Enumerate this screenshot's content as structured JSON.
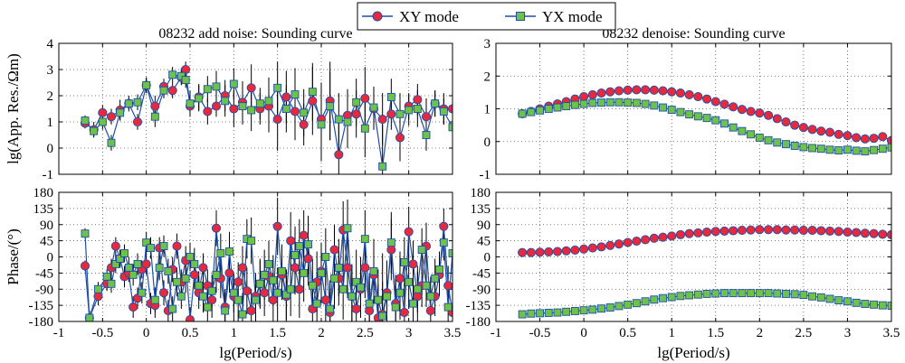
{
  "legend": {
    "items": [
      {
        "label": "XY mode"
      },
      {
        "label": "YX mode"
      }
    ]
  },
  "colors": {
    "xy_marker": "#e8283c",
    "yx_marker": "#6cc24a",
    "line": "#1f4fa8",
    "error_bar": "#000000"
  },
  "chart_data": [
    {
      "type": "line",
      "title": "08232 add noise: Sounding curve",
      "xlabel": "",
      "ylabel": "lg(App. Res./Ωm)",
      "xlim": [
        -1,
        3.5
      ],
      "ylim": [
        -1,
        4
      ],
      "xticks": [
        "-1",
        "-0.5",
        "0",
        "0.5",
        "1",
        "1.5",
        "2",
        "2.5",
        "3",
        "3.5"
      ],
      "yticks": [
        "-1",
        "0",
        "1",
        "2",
        "3",
        "4"
      ],
      "grid": true,
      "error_bars": true,
      "x": [
        -0.7,
        -0.6,
        -0.5,
        -0.4,
        -0.3,
        -0.2,
        -0.1,
        0.0,
        0.1,
        0.2,
        0.3,
        0.4,
        0.45,
        0.5,
        0.6,
        0.7,
        0.8,
        0.9,
        1.0,
        1.1,
        1.2,
        1.3,
        1.4,
        1.5,
        1.6,
        1.7,
        1.8,
        1.9,
        2.0,
        2.1,
        2.2,
        2.3,
        2.4,
        2.5,
        2.6,
        2.7,
        2.8,
        2.9,
        3.0,
        3.1,
        3.2,
        3.3,
        3.4,
        3.5
      ],
      "series": [
        {
          "name": "XY mode",
          "values": [
            0.95,
            0.7,
            1.35,
            1.2,
            1.45,
            1.7,
            1.0,
            2.4,
            1.6,
            2.35,
            2.2,
            2.7,
            3.0,
            1.6,
            1.95,
            1.4,
            1.6,
            2.0,
            1.5,
            1.75,
            2.3,
            1.5,
            1.6,
            1.1,
            1.95,
            1.4,
            0.9,
            1.8,
            1.1,
            1.8,
            -0.25,
            1.25,
            1.3,
            1.9,
            1.5,
            1.1,
            1.3,
            0.4,
            1.6,
            1.85,
            1.2,
            1.7,
            1.5,
            1.5
          ]
        },
        {
          "name": "YX mode",
          "values": [
            1.05,
            0.65,
            1.0,
            0.2,
            1.35,
            1.7,
            1.75,
            2.4,
            1.2,
            2.2,
            2.8,
            2.75,
            2.6,
            1.7,
            1.9,
            2.25,
            2.35,
            1.8,
            2.45,
            1.6,
            1.45,
            1.7,
            1.8,
            2.3,
            1.5,
            2.05,
            1.35,
            2.15,
            0.9,
            1.6,
            1.1,
            1.0,
            1.75,
            0.75,
            1.55,
            -0.7,
            1.95,
            1.3,
            1.45,
            1.5,
            0.5,
            1.7,
            1.4,
            0.8
          ]
        }
      ],
      "xy_error": [
        0.2,
        0.3,
        0.3,
        0.3,
        0.4,
        0.2,
        0.3,
        0.3,
        0.4,
        0.3,
        0.3,
        0.3,
        0.3,
        0.4,
        0.5,
        0.5,
        0.4,
        0.6,
        0.7,
        0.8,
        0.9,
        0.6,
        1.0,
        1.2,
        1.0,
        1.1,
        0.8,
        1.3,
        1.4,
        1.5,
        1.2,
        1.0,
        0.9,
        1.2,
        0.8,
        1.0,
        0.6,
        0.9,
        0.5,
        0.6,
        0.7,
        0.5,
        0.6,
        0.4
      ],
      "yx_error": [
        0.2,
        0.2,
        0.3,
        0.3,
        0.3,
        0.3,
        0.3,
        0.3,
        0.4,
        0.3,
        0.3,
        0.3,
        0.3,
        0.5,
        0.5,
        0.5,
        0.6,
        0.6,
        0.6,
        0.7,
        0.8,
        0.6,
        0.9,
        1.0,
        0.9,
        1.0,
        0.9,
        1.1,
        1.4,
        1.3,
        1.0,
        1.0,
        0.9,
        1.1,
        0.8,
        1.6,
        0.7,
        0.8,
        0.6,
        0.7,
        0.6,
        0.5,
        0.5,
        0.4
      ]
    },
    {
      "type": "line",
      "title": "08232 denoise: Sounding curve",
      "xlabel": "",
      "ylabel": "",
      "xlim": [
        -1,
        3.5
      ],
      "ylim": [
        -1,
        3
      ],
      "xticks": [
        "-1",
        "-0.5",
        "0",
        "0.5",
        "1",
        "1.5",
        "2",
        "2.5",
        "3",
        "3.5"
      ],
      "yticks": [
        "-1",
        "0",
        "1",
        "2",
        "3"
      ],
      "grid": true,
      "x": [
        -0.7,
        -0.6,
        -0.5,
        -0.4,
        -0.3,
        -0.2,
        -0.1,
        0.0,
        0.1,
        0.2,
        0.3,
        0.4,
        0.5,
        0.6,
        0.7,
        0.8,
        0.9,
        1.0,
        1.1,
        1.2,
        1.3,
        1.4,
        1.5,
        1.6,
        1.7,
        1.8,
        1.9,
        2.0,
        2.1,
        2.2,
        2.3,
        2.4,
        2.5,
        2.6,
        2.7,
        2.8,
        2.9,
        3.0,
        3.1,
        3.2,
        3.3,
        3.4,
        3.5
      ],
      "series": [
        {
          "name": "XY mode",
          "values": [
            0.85,
            0.92,
            1.0,
            1.08,
            1.15,
            1.22,
            1.3,
            1.37,
            1.43,
            1.48,
            1.52,
            1.55,
            1.57,
            1.58,
            1.58,
            1.57,
            1.55,
            1.52,
            1.48,
            1.43,
            1.37,
            1.3,
            1.22,
            1.14,
            1.06,
            0.98,
            0.92,
            0.87,
            0.8,
            0.7,
            0.6,
            0.5,
            0.43,
            0.37,
            0.32,
            0.28,
            0.22,
            0.18,
            0.12,
            0.08,
            0.1,
            0.15,
            0.03
          ]
        },
        {
          "name": "YX mode",
          "values": [
            0.85,
            0.9,
            0.95,
            1.0,
            1.04,
            1.08,
            1.12,
            1.15,
            1.18,
            1.19,
            1.2,
            1.2,
            1.19,
            1.18,
            1.15,
            1.1,
            1.04,
            0.97,
            0.9,
            0.83,
            0.77,
            0.72,
            0.65,
            0.55,
            0.43,
            0.32,
            0.22,
            0.12,
            0.04,
            -0.03,
            -0.08,
            -0.13,
            -0.17,
            -0.2,
            -0.22,
            -0.25,
            -0.27,
            -0.25,
            -0.28,
            -0.3,
            -0.26,
            -0.22,
            -0.18
          ]
        }
      ]
    },
    {
      "type": "line",
      "title": "",
      "xlabel": "lg(Period/s)",
      "ylabel": "Phase/(°)",
      "xlim": [
        -1,
        3.5
      ],
      "ylim": [
        -180,
        180
      ],
      "xticks": [
        "-1",
        "-0.5",
        "0",
        "0.5",
        "1",
        "1.5",
        "2",
        "2.5",
        "3",
        "3.5"
      ],
      "yticks": [
        "-180",
        "-135",
        "-90",
        "-45",
        "0",
        "45",
        "90",
        "135",
        "180"
      ],
      "grid": true,
      "error_bars": true,
      "x": [
        -0.7,
        -0.65,
        -0.55,
        -0.45,
        -0.4,
        -0.35,
        -0.3,
        -0.25,
        -0.2,
        -0.15,
        -0.1,
        -0.05,
        0.0,
        0.05,
        0.1,
        0.15,
        0.2,
        0.25,
        0.3,
        0.35,
        0.4,
        0.45,
        0.5,
        0.55,
        0.6,
        0.65,
        0.7,
        0.75,
        0.8,
        0.85,
        0.9,
        0.95,
        1.0,
        1.05,
        1.1,
        1.15,
        1.2,
        1.25,
        1.3,
        1.35,
        1.4,
        1.45,
        1.5,
        1.55,
        1.6,
        1.65,
        1.7,
        1.75,
        1.8,
        1.85,
        1.9,
        1.95,
        2.0,
        2.05,
        2.1,
        2.15,
        2.2,
        2.25,
        2.3,
        2.35,
        2.4,
        2.45,
        2.5,
        2.55,
        2.6,
        2.65,
        2.7,
        2.75,
        2.8,
        2.85,
        2.9,
        2.95,
        3.0,
        3.05,
        3.1,
        3.15,
        3.2,
        3.25,
        3.3,
        3.35,
        3.4,
        3.45,
        3.5
      ],
      "series": [
        {
          "name": "XY mode",
          "values": [
            -25,
            -170,
            -110,
            -75,
            -30,
            30,
            -5,
            -55,
            -45,
            -140,
            -115,
            -35,
            -20,
            -130,
            -135,
            25,
            -100,
            -150,
            -35,
            30,
            -70,
            -10,
            -175,
            -50,
            -100,
            -30,
            -80,
            -120,
            80,
            -60,
            -140,
            -45,
            -110,
            -70,
            -30,
            -95,
            -150,
            -110,
            -75,
            -100,
            -55,
            -120,
            85,
            -50,
            -110,
            45,
            -30,
            -90,
            60,
            -5,
            -145,
            -70,
            -40,
            -120,
            -155,
            20,
            -60,
            75,
            -30,
            -110,
            -145,
            -90,
            -30,
            -150,
            -50,
            -170,
            -160,
            -100,
            20,
            -130,
            -60,
            -155,
            70,
            -20,
            -110,
            -80,
            30,
            -150,
            -110,
            -50,
            85,
            -80,
            -155
          ]
        },
        {
          "name": "YX mode",
          "values": [
            65,
            -170,
            -90,
            -55,
            -75,
            -20,
            -5,
            10,
            -30,
            -50,
            -20,
            -100,
            40,
            25,
            -120,
            -30,
            30,
            -40,
            -145,
            -70,
            -110,
            -60,
            0,
            -20,
            -80,
            -110,
            -140,
            -95,
            -50,
            10,
            -150,
            15,
            -100,
            -120,
            -160,
            50,
            45,
            -120,
            -75,
            -50,
            -20,
            -65,
            -100,
            -40,
            -105,
            -90,
            5,
            30,
            -45,
            35,
            -80,
            -130,
            -45,
            0,
            -145,
            -60,
            -30,
            -90,
            80,
            -110,
            -70,
            -85,
            50,
            -130,
            -40,
            -120,
            -165,
            -110,
            40,
            -140,
            -100,
            -15,
            -70,
            -130,
            -90,
            20,
            -80,
            -110,
            -60,
            -35,
            40,
            -140,
            10
          ]
        }
      ],
      "xy_error": [
        15,
        20,
        25,
        20,
        25,
        25,
        25,
        30,
        25,
        30,
        30,
        25,
        30,
        30,
        35,
        30,
        35,
        30,
        35,
        35,
        35,
        40,
        35,
        40,
        45,
        40,
        45,
        50,
        50,
        55,
        50,
        55,
        60,
        55,
        60,
        65,
        60,
        65,
        70,
        65,
        70,
        75,
        80,
        70,
        75,
        80,
        75,
        80,
        70,
        75,
        80,
        85,
        75,
        80,
        85,
        70,
        75,
        80,
        85,
        90,
        80,
        75,
        85,
        95,
        80,
        95,
        170,
        90,
        85,
        80,
        75,
        80,
        70,
        65,
        70,
        60,
        65,
        60,
        55,
        60,
        50,
        55,
        45
      ],
      "yx_error": [
        15,
        20,
        20,
        20,
        25,
        25,
        25,
        25,
        30,
        30,
        30,
        30,
        30,
        30,
        35,
        35,
        30,
        35,
        35,
        40,
        35,
        40,
        40,
        45,
        40,
        45,
        50,
        45,
        50,
        55,
        50,
        55,
        55,
        60,
        60,
        55,
        65,
        60,
        65,
        70,
        65,
        70,
        70,
        75,
        70,
        75,
        80,
        75,
        80,
        80,
        75,
        80,
        85,
        80,
        80,
        85,
        80,
        85,
        80,
        85,
        90,
        85,
        80,
        85,
        90,
        85,
        95,
        90,
        85,
        80,
        75,
        70,
        75,
        70,
        65,
        60,
        60,
        55,
        55,
        50,
        50,
        45,
        45
      ]
    },
    {
      "type": "line",
      "title": "",
      "xlabel": "lg(Period/s)",
      "ylabel": "",
      "xlim": [
        -1,
        3.5
      ],
      "ylim": [
        -180,
        180
      ],
      "xticks": [
        "-1",
        "-0.5",
        "0",
        "0.5",
        "1",
        "1.5",
        "2",
        "2.5",
        "3",
        "3.5"
      ],
      "yticks": [
        "-180",
        "-135",
        "-90",
        "-45",
        "0",
        "45",
        "90",
        "135",
        "180"
      ],
      "grid": true,
      "x": [
        -0.7,
        -0.6,
        -0.5,
        -0.4,
        -0.3,
        -0.2,
        -0.1,
        0.0,
        0.1,
        0.2,
        0.3,
        0.4,
        0.5,
        0.6,
        0.7,
        0.8,
        0.9,
        1.0,
        1.1,
        1.2,
        1.3,
        1.4,
        1.5,
        1.6,
        1.7,
        1.8,
        1.9,
        2.0,
        2.1,
        2.2,
        2.3,
        2.4,
        2.5,
        2.6,
        2.7,
        2.8,
        2.9,
        3.0,
        3.1,
        3.2,
        3.3,
        3.4,
        3.5
      ],
      "series": [
        {
          "name": "XY mode",
          "values": [
            12,
            12,
            13,
            14,
            15,
            17,
            19,
            22,
            25,
            28,
            32,
            36,
            40,
            44,
            48,
            52,
            55,
            58,
            62,
            65,
            67,
            69,
            71,
            72,
            73,
            74,
            75,
            76,
            76,
            76,
            75,
            75,
            74,
            74,
            73,
            72,
            71,
            69,
            68,
            66,
            65,
            63,
            62
          ]
        },
        {
          "name": "YX mode",
          "values": [
            -160,
            -158,
            -157,
            -156,
            -155,
            -153,
            -151,
            -149,
            -147,
            -144,
            -141,
            -137,
            -133,
            -129,
            -124,
            -119,
            -115,
            -112,
            -109,
            -107,
            -105,
            -103,
            -102,
            -101,
            -101,
            -101,
            -101,
            -101,
            -101,
            -102,
            -103,
            -104,
            -106,
            -110,
            -113,
            -117,
            -121,
            -124,
            -128,
            -131,
            -133,
            -135,
            -136
          ]
        }
      ]
    }
  ]
}
